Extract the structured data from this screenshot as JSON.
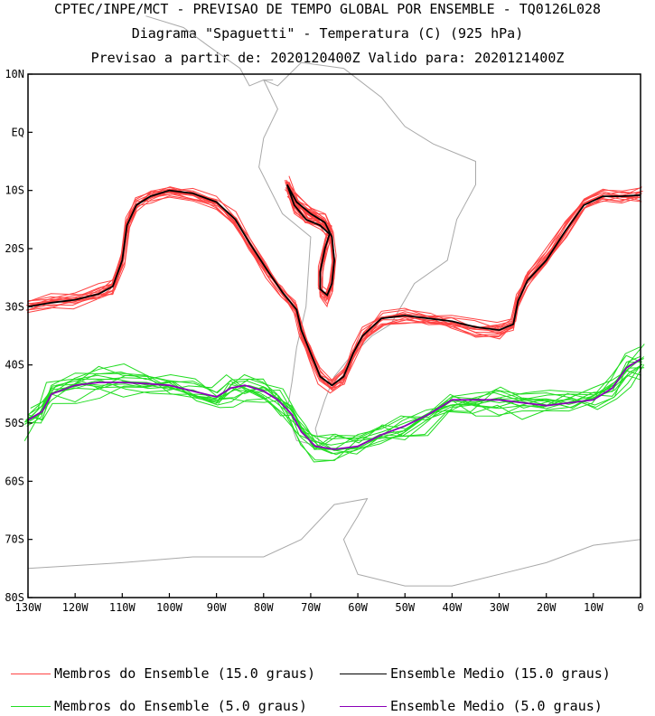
{
  "chart_data": {
    "type": "line",
    "title_lines": [
      "CPTEC/INPE/MCT - PREVISAO DE TEMPO GLOBAL POR ENSEMBLE - TQ0126L028",
      "Diagrama \"Spaguetti\" - Temperatura (C) (925 hPa)",
      "Previsao a partir de: 2020120400Z  Valido para: 2020121400Z"
    ],
    "x_axis": {
      "range": [
        -130,
        0
      ],
      "ticks": [
        -130,
        -120,
        -110,
        -100,
        -90,
        -80,
        -70,
        -60,
        -50,
        -40,
        -30,
        -20,
        -10,
        0
      ],
      "tick_labels": [
        "130W",
        "120W",
        "110W",
        "100W",
        "90W",
        "80W",
        "70W",
        "60W",
        "50W",
        "40W",
        "30W",
        "20W",
        "10W",
        "0"
      ]
    },
    "y_axis": {
      "range": [
        -80,
        10
      ],
      "ticks": [
        10,
        0,
        -10,
        -20,
        -30,
        -40,
        -50,
        -60,
        -70,
        -80
      ],
      "tick_labels": [
        "10N",
        "EQ",
        "10S",
        "20S",
        "30S",
        "40S",
        "50S",
        "60S",
        "70S",
        "80S"
      ]
    },
    "series": [
      {
        "name": "Ensemble Medio (15.0 graus)",
        "color": "#000000",
        "points": [
          [
            -130,
            -30
          ],
          [
            -125,
            -29.3
          ],
          [
            -120,
            -28.8
          ],
          [
            -115,
            -27.8
          ],
          [
            -112,
            -26.5
          ],
          [
            -110,
            -22
          ],
          [
            -109,
            -16
          ],
          [
            -107,
            -12.5
          ],
          [
            -104,
            -11
          ],
          [
            -100,
            -10
          ],
          [
            -95,
            -10.5
          ],
          [
            -90,
            -12
          ],
          [
            -86,
            -15
          ],
          [
            -83,
            -19
          ],
          [
            -79,
            -24
          ],
          [
            -76,
            -27.5
          ],
          [
            -73,
            -30.5
          ],
          [
            -72,
            -34
          ],
          [
            -70,
            -38
          ],
          [
            -68,
            -42
          ],
          [
            -65.5,
            -43.5
          ],
          [
            -63,
            -42
          ],
          [
            -61,
            -38
          ],
          [
            -59,
            -35
          ],
          [
            -55,
            -32
          ],
          [
            -50,
            -31.5
          ],
          [
            -45,
            -32
          ],
          [
            -40,
            -32.5
          ],
          [
            -35,
            -33.5
          ],
          [
            -30,
            -34
          ],
          [
            -27,
            -33
          ],
          [
            -26,
            -29
          ],
          [
            -24,
            -25.5
          ],
          [
            -20,
            -22
          ],
          [
            -16,
            -17
          ],
          [
            -12,
            -12.5
          ],
          [
            -8,
            -11
          ],
          [
            -4,
            -11
          ],
          [
            0,
            -10.8
          ]
        ]
      },
      {
        "name": "Ensemble Medio (15.0 graus)",
        "color": "#000000",
        "points": [
          [
            -75,
            -9
          ],
          [
            -73,
            -12
          ],
          [
            -70,
            -14
          ],
          [
            -67,
            -15.5
          ],
          [
            -65.5,
            -18
          ],
          [
            -65,
            -22
          ],
          [
            -65.5,
            -26
          ],
          [
            -66.5,
            -28
          ],
          [
            -68,
            -27
          ],
          [
            -68,
            -24
          ],
          [
            -67,
            -20
          ],
          [
            -66,
            -17.5
          ],
          [
            -68,
            -16
          ],
          [
            -71,
            -15
          ],
          [
            -73.5,
            -12.5
          ],
          [
            -75,
            -9
          ]
        ]
      },
      {
        "name": "Ensemble Medio (5.0 graus)",
        "color": "#8a00b8",
        "points": [
          [
            -130,
            -49.5
          ],
          [
            -127,
            -48
          ],
          [
            -125,
            -45
          ],
          [
            -120,
            -43.5
          ],
          [
            -115,
            -43
          ],
          [
            -110,
            -43
          ],
          [
            -105,
            -43.2
          ],
          [
            -100,
            -43.5
          ],
          [
            -95,
            -44.5
          ],
          [
            -90,
            -45.5
          ],
          [
            -87,
            -44
          ],
          [
            -84,
            -43.5
          ],
          [
            -80,
            -44.5
          ],
          [
            -77,
            -46
          ],
          [
            -74,
            -48.5
          ],
          [
            -72,
            -51.5
          ],
          [
            -69,
            -54
          ],
          [
            -65,
            -54.5
          ],
          [
            -60,
            -54
          ],
          [
            -55,
            -52
          ],
          [
            -50,
            -50.5
          ],
          [
            -45,
            -48.5
          ],
          [
            -40,
            -46
          ],
          [
            -35,
            -46
          ],
          [
            -30,
            -46
          ],
          [
            -25,
            -46.5
          ],
          [
            -20,
            -47
          ],
          [
            -15,
            -46.5
          ],
          [
            -10,
            -46
          ],
          [
            -6,
            -44
          ],
          [
            -3,
            -40.5
          ],
          [
            0,
            -39
          ]
        ]
      }
    ],
    "legend": [
      {
        "label": "Membros do Ensemble (15.0 graus)",
        "color": "#ff4444"
      },
      {
        "label": "Ensemble Medio (15.0 graus)",
        "color": "#000000"
      },
      {
        "label": "Membros do Ensemble (5.0 graus)",
        "color": "#22dd22"
      },
      {
        "label": "Ensemble Medio (5.0 graus)",
        "color": "#8a00b8"
      }
    ],
    "member_colors": {
      "warm": "#ff4444",
      "cold": "#22dd22",
      "coast": "#a9a9a9"
    }
  }
}
